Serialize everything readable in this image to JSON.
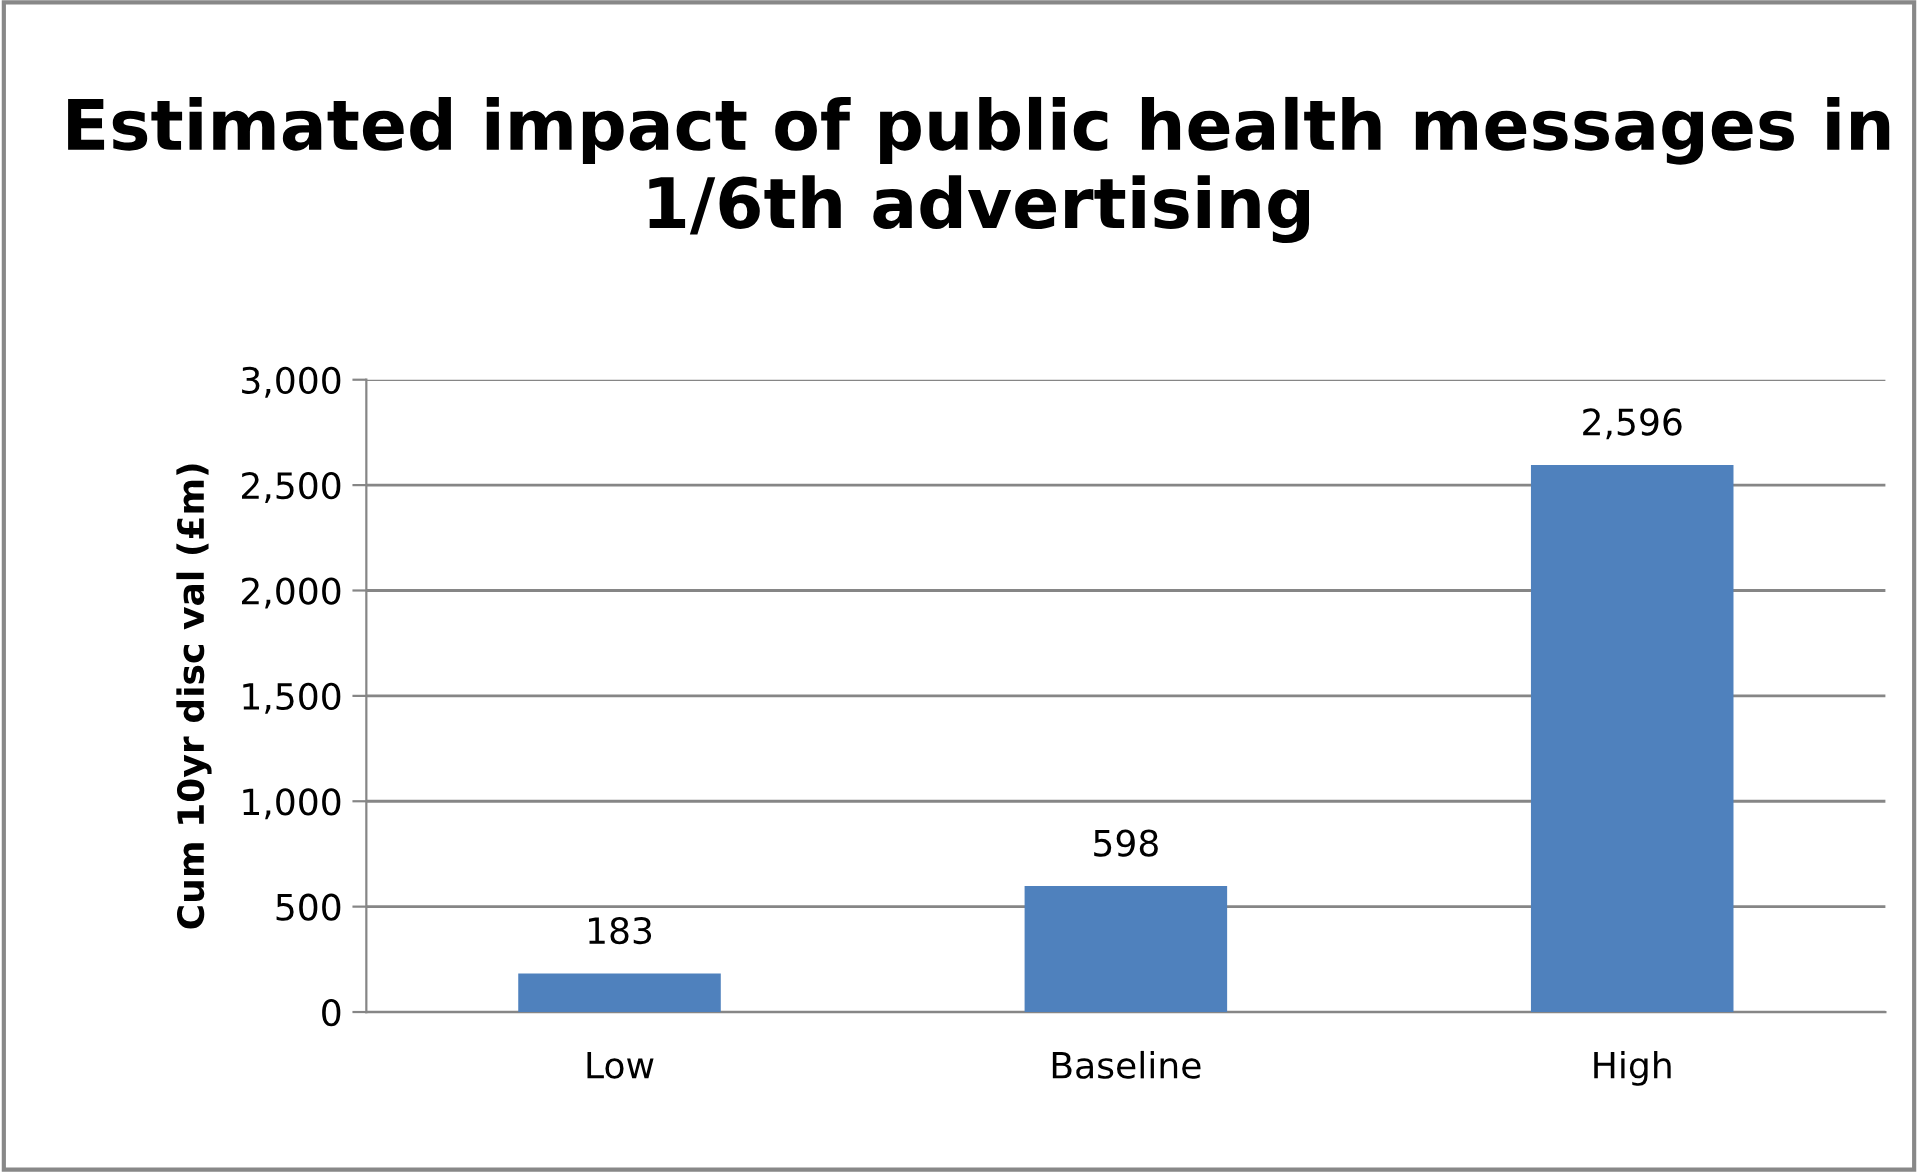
{
  "chart_data": {
    "type": "bar",
    "title": "Estimated impact of public health messages in 1/6th advertising",
    "ylabel": "Cum 10yr disc val (£m)",
    "categories": [
      "Low",
      "Baseline",
      "High"
    ],
    "values": [
      183,
      598,
      2596
    ],
    "color": "#4f81bd",
    "value_labels": [
      "183",
      "598",
      "2,596"
    ],
    "ylim": [
      0,
      3000
    ],
    "yticks": [
      0,
      {
        "value": 500,
        "label": "500"
      },
      {
        "value": 1000,
        "label": "1,000"
      },
      {
        "value": 1500,
        "label": "1,500"
      },
      {
        "value": 2000,
        "label": "2,000"
      },
      {
        "value": 2500,
        "label": "2,500"
      },
      {
        "value": 3000,
        "label": "3,000"
      }
    ],
    "grid": "y",
    "legend": false
  }
}
